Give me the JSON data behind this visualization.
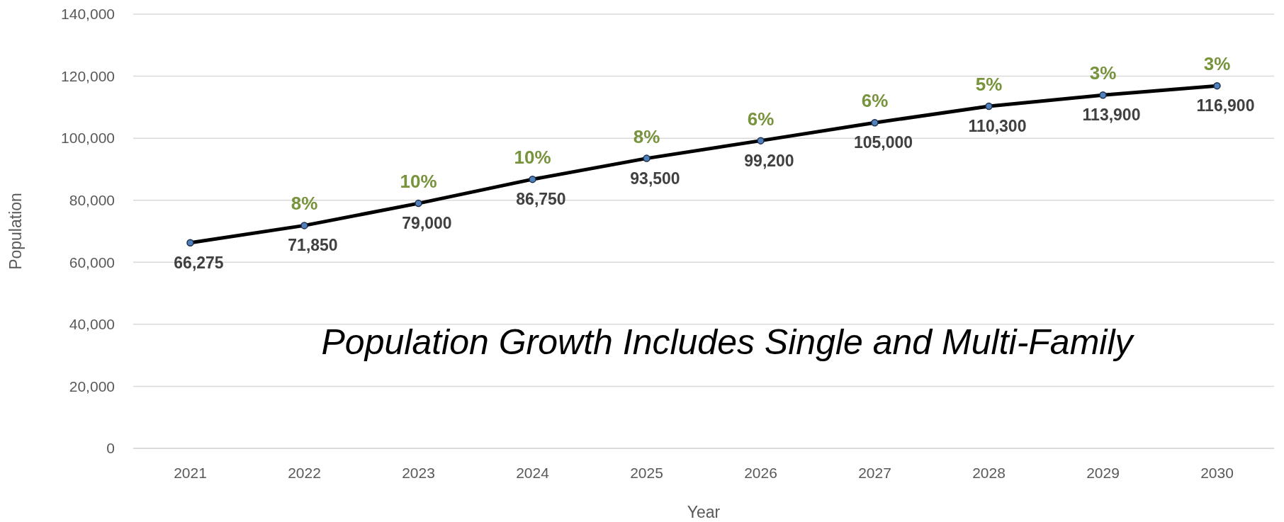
{
  "chart_data": {
    "type": "line",
    "xlabel": "Year",
    "ylabel": "Population",
    "categories": [
      "2021",
      "2022",
      "2023",
      "2024",
      "2025",
      "2026",
      "2027",
      "2028",
      "2029",
      "2030"
    ],
    "series": [
      {
        "color": "#000000",
        "values": [
          66275,
          71850,
          79000,
          86750,
          93500,
          99200,
          105000,
          110300,
          113900,
          116900
        ],
        "value_labels": [
          "66,275",
          "71,850",
          "79,000",
          "86,750",
          "93,500",
          "99,200",
          "105,000",
          "110,300",
          "113,900",
          "116,900"
        ]
      }
    ],
    "ylim": [
      0,
      140000
    ],
    "yticks": [
      {
        "value": 0,
        "label": "0"
      },
      {
        "value": 20000,
        "label": "20,000"
      },
      {
        "value": 40000,
        "label": "40,000"
      },
      {
        "value": 60000,
        "label": "60,000"
      },
      {
        "value": 80000,
        "label": "80,000"
      },
      {
        "value": 100000,
        "label": "100,000"
      },
      {
        "value": 120000,
        "label": "120,000"
      },
      {
        "value": 140000,
        "label": "140,000"
      }
    ],
    "grid": "y",
    "marker": "circle",
    "line_style": "solid",
    "annotations": [
      {
        "text": "8%",
        "x": "2022",
        "y": 71850
      },
      {
        "text": "10%",
        "x": "2023",
        "y": 79000
      },
      {
        "text": "10%",
        "x": "2024",
        "y": 86750
      },
      {
        "text": "8%",
        "x": "2025",
        "y": 93500
      },
      {
        "text": "6%",
        "x": "2026",
        "y": 99200
      },
      {
        "text": "6%",
        "x": "2027",
        "y": 105000
      },
      {
        "text": "5%",
        "x": "2028",
        "y": 110300
      },
      {
        "text": "3%",
        "x": "2029",
        "y": 113900
      },
      {
        "text": "3%",
        "x": "2030",
        "y": 116900
      },
      "Population Growth Includes Single and Multi-Family"
    ]
  }
}
